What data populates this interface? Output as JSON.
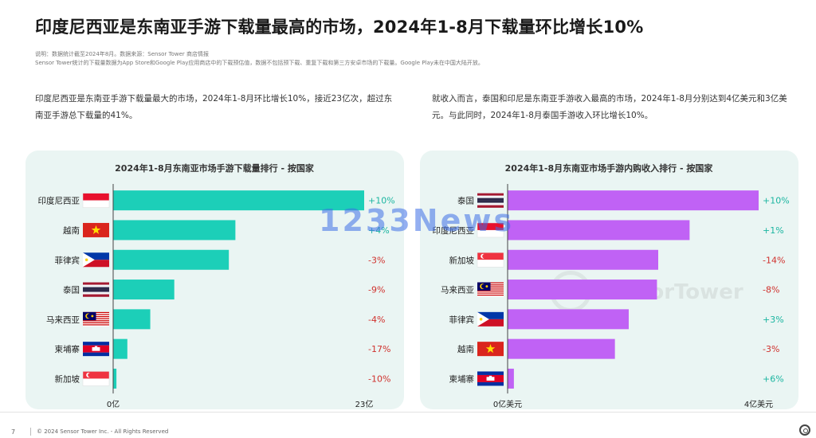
{
  "header": {
    "title": "印度尼西亚是东南亚手游下载量最高的市场，2024年1-8月下载量环比增长10%",
    "note1": "说明：数据统计截至2024年8月。数据来源：Sensor Tower 商店情报",
    "note2": "Sensor Tower统计的下载量数据为App Store和Google Play应用商店中的下载预估值，数据不包括预下载、重复下载和第三方安卓市场的下载量。Google Play未在中国大陆开放。"
  },
  "paragraphs": {
    "left": "印度尼西亚是东南亚手游下载量最大的市场，2024年1-8月环比增长10%，接近23亿次，超过东南亚手游总下载量的41%。",
    "right": "就收入而言，泰国和印尼是东南亚手游收入最高的市场，2024年1-8月分别达到4亿美元和3亿美元。与此同时，2024年1-8月泰国手游收入环比增长10%。"
  },
  "watermark": "1233News",
  "brand_watermark": "SensorTower",
  "footer": {
    "page": "7",
    "copyright": "© 2024 Sensor Tower Inc. - All Rights Reserved"
  },
  "colors": {
    "downloads_bar": "#1ccfb8",
    "revenue_bar": "#c062f5",
    "positive": "#1ab5a0",
    "negative": "#d0312d"
  },
  "chart_data": [
    {
      "type": "bar",
      "orientation": "horizontal",
      "title": "2024年1-8月东南亚市场手游下载量排行 - 按国家",
      "categories": [
        "印度尼西亚",
        "越南",
        "菲律宾",
        "泰国",
        "马来西亚",
        "柬埔寨",
        "新加坡"
      ],
      "flags": [
        "indonesia",
        "vietnam",
        "philippines",
        "thailand",
        "malaysia",
        "cambodia",
        "singapore"
      ],
      "values": [
        2.3,
        1.12,
        1.06,
        0.56,
        0.34,
        0.13,
        0.03
      ],
      "changes": [
        "+10%",
        "+4%",
        "-3%",
        "-9%",
        "-4%",
        "-17%",
        "-10%"
      ],
      "xlim": [
        0,
        2.3
      ],
      "axis_labels": [
        "0亿",
        "23亿"
      ]
    },
    {
      "type": "bar",
      "orientation": "horizontal",
      "title": "2024年1-8月东南亚市场手游内购收入排行 - 按国家",
      "categories": [
        "泰国",
        "印度尼西亚",
        "新加坡",
        "马来西亚",
        "菲律宾",
        "越南",
        "柬埔寨"
      ],
      "flags": [
        "thailand",
        "indonesia",
        "singapore",
        "malaysia",
        "philippines",
        "vietnam",
        "cambodia"
      ],
      "values": [
        4.0,
        2.9,
        2.4,
        2.38,
        1.93,
        1.71,
        0.1
      ],
      "changes": [
        "+10%",
        "+1%",
        "-14%",
        "-8%",
        "+3%",
        "-3%",
        "+6%"
      ],
      "xlim": [
        0,
        4.0
      ],
      "axis_labels": [
        "0亿美元",
        "4亿美元"
      ]
    }
  ]
}
